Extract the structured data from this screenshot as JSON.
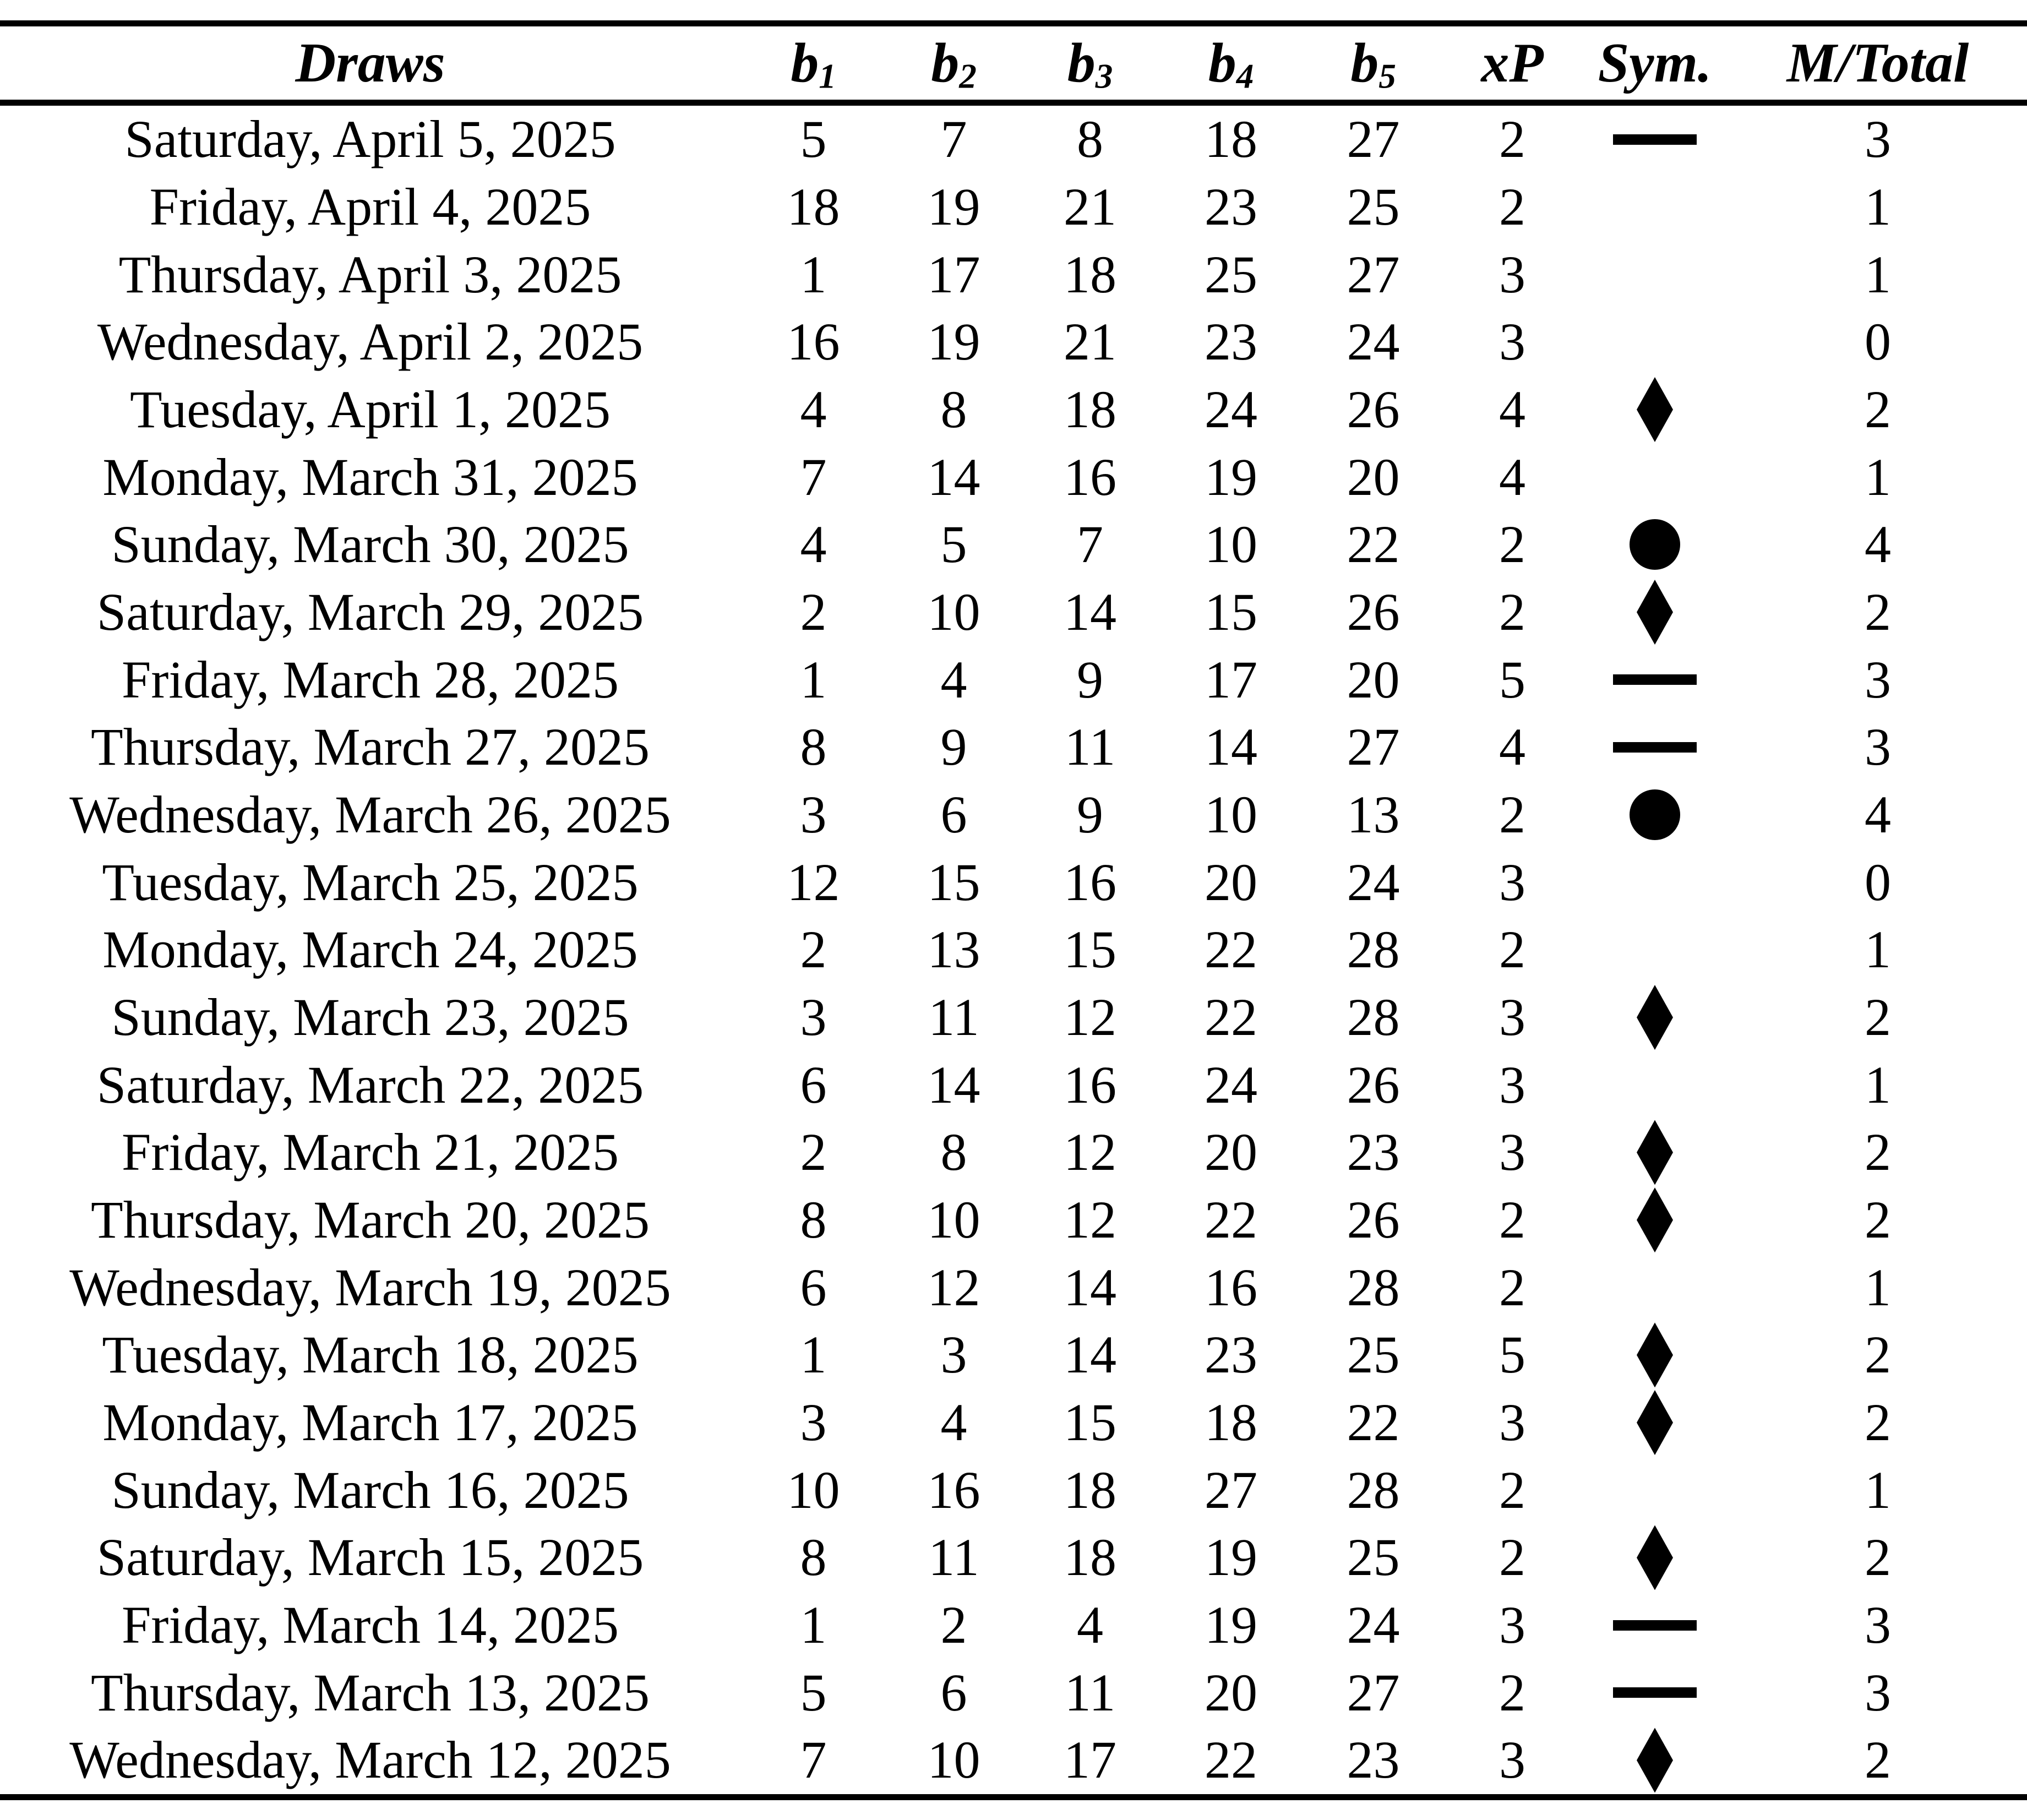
{
  "page": {
    "background": "#ffffff",
    "text_color": "#000000"
  },
  "table": {
    "header": [
      {
        "name": "draws",
        "label": "Draws"
      },
      {
        "name": "b1",
        "base": "b",
        "sub": "1"
      },
      {
        "name": "b2",
        "base": "b",
        "sub": "2"
      },
      {
        "name": "b3",
        "base": "b",
        "sub": "3"
      },
      {
        "name": "b4",
        "base": "b",
        "sub": "4"
      },
      {
        "name": "b5",
        "base": "b",
        "sub": "5"
      },
      {
        "name": "xp",
        "label": "xP"
      },
      {
        "name": "sym",
        "label": "Sym."
      },
      {
        "name": "mtotal",
        "label": "M/Total"
      }
    ],
    "symbol_types": {
      "dash": "horizontal-bar",
      "diamond": "filled-diamond",
      "circle": "filled-circle",
      "none": "blank"
    },
    "rows": [
      {
        "date": "Saturday, April 5, 2025",
        "b1": 5,
        "b2": 7,
        "b3": 8,
        "b4": 18,
        "b5": 27,
        "xp": 2,
        "sym": "dash",
        "mtotal": 3
      },
      {
        "date": "Friday, April 4, 2025",
        "b1": 18,
        "b2": 19,
        "b3": 21,
        "b4": 23,
        "b5": 25,
        "xp": 2,
        "sym": "none",
        "mtotal": 1
      },
      {
        "date": "Thursday, April 3, 2025",
        "b1": 1,
        "b2": 17,
        "b3": 18,
        "b4": 25,
        "b5": 27,
        "xp": 3,
        "sym": "none",
        "mtotal": 1
      },
      {
        "date": "Wednesday, April 2, 2025",
        "b1": 16,
        "b2": 19,
        "b3": 21,
        "b4": 23,
        "b5": 24,
        "xp": 3,
        "sym": "none",
        "mtotal": 0
      },
      {
        "date": "Tuesday, April 1, 2025",
        "b1": 4,
        "b2": 8,
        "b3": 18,
        "b4": 24,
        "b5": 26,
        "xp": 4,
        "sym": "diamond",
        "mtotal": 2
      },
      {
        "date": "Monday, March 31, 2025",
        "b1": 7,
        "b2": 14,
        "b3": 16,
        "b4": 19,
        "b5": 20,
        "xp": 4,
        "sym": "none",
        "mtotal": 1
      },
      {
        "date": "Sunday, March 30, 2025",
        "b1": 4,
        "b2": 5,
        "b3": 7,
        "b4": 10,
        "b5": 22,
        "xp": 2,
        "sym": "circle",
        "mtotal": 4
      },
      {
        "date": "Saturday, March 29, 2025",
        "b1": 2,
        "b2": 10,
        "b3": 14,
        "b4": 15,
        "b5": 26,
        "xp": 2,
        "sym": "diamond",
        "mtotal": 2
      },
      {
        "date": "Friday, March 28, 2025",
        "b1": 1,
        "b2": 4,
        "b3": 9,
        "b4": 17,
        "b5": 20,
        "xp": 5,
        "sym": "dash",
        "mtotal": 3
      },
      {
        "date": "Thursday, March 27, 2025",
        "b1": 8,
        "b2": 9,
        "b3": 11,
        "b4": 14,
        "b5": 27,
        "xp": 4,
        "sym": "dash",
        "mtotal": 3
      },
      {
        "date": "Wednesday, March 26, 2025",
        "b1": 3,
        "b2": 6,
        "b3": 9,
        "b4": 10,
        "b5": 13,
        "xp": 2,
        "sym": "circle",
        "mtotal": 4
      },
      {
        "date": "Tuesday, March 25, 2025",
        "b1": 12,
        "b2": 15,
        "b3": 16,
        "b4": 20,
        "b5": 24,
        "xp": 3,
        "sym": "none",
        "mtotal": 0
      },
      {
        "date": "Monday, March 24, 2025",
        "b1": 2,
        "b2": 13,
        "b3": 15,
        "b4": 22,
        "b5": 28,
        "xp": 2,
        "sym": "none",
        "mtotal": 1
      },
      {
        "date": "Sunday, March 23, 2025",
        "b1": 3,
        "b2": 11,
        "b3": 12,
        "b4": 22,
        "b5": 28,
        "xp": 3,
        "sym": "diamond",
        "mtotal": 2
      },
      {
        "date": "Saturday, March 22, 2025",
        "b1": 6,
        "b2": 14,
        "b3": 16,
        "b4": 24,
        "b5": 26,
        "xp": 3,
        "sym": "none",
        "mtotal": 1
      },
      {
        "date": "Friday, March 21, 2025",
        "b1": 2,
        "b2": 8,
        "b3": 12,
        "b4": 20,
        "b5": 23,
        "xp": 3,
        "sym": "diamond",
        "mtotal": 2
      },
      {
        "date": "Thursday, March 20, 2025",
        "b1": 8,
        "b2": 10,
        "b3": 12,
        "b4": 22,
        "b5": 26,
        "xp": 2,
        "sym": "diamond",
        "mtotal": 2
      },
      {
        "date": "Wednesday, March 19, 2025",
        "b1": 6,
        "b2": 12,
        "b3": 14,
        "b4": 16,
        "b5": 28,
        "xp": 2,
        "sym": "none",
        "mtotal": 1
      },
      {
        "date": "Tuesday, March 18, 2025",
        "b1": 1,
        "b2": 3,
        "b3": 14,
        "b4": 23,
        "b5": 25,
        "xp": 5,
        "sym": "diamond",
        "mtotal": 2
      },
      {
        "date": "Monday, March 17, 2025",
        "b1": 3,
        "b2": 4,
        "b3": 15,
        "b4": 18,
        "b5": 22,
        "xp": 3,
        "sym": "diamond",
        "mtotal": 2
      },
      {
        "date": "Sunday, March 16, 2025",
        "b1": 10,
        "b2": 16,
        "b3": 18,
        "b4": 27,
        "b5": 28,
        "xp": 2,
        "sym": "none",
        "mtotal": 1
      },
      {
        "date": "Saturday, March 15, 2025",
        "b1": 8,
        "b2": 11,
        "b3": 18,
        "b4": 19,
        "b5": 25,
        "xp": 2,
        "sym": "diamond",
        "mtotal": 2
      },
      {
        "date": "Friday, March 14, 2025",
        "b1": 1,
        "b2": 2,
        "b3": 4,
        "b4": 19,
        "b5": 24,
        "xp": 3,
        "sym": "dash",
        "mtotal": 3
      },
      {
        "date": "Thursday, March 13, 2025",
        "b1": 5,
        "b2": 6,
        "b3": 11,
        "b4": 20,
        "b5": 27,
        "xp": 2,
        "sym": "dash",
        "mtotal": 3
      },
      {
        "date": "Wednesday, March 12, 2025",
        "b1": 7,
        "b2": 10,
        "b3": 17,
        "b4": 22,
        "b5": 23,
        "xp": 3,
        "sym": "diamond",
        "mtotal": 2
      }
    ]
  }
}
